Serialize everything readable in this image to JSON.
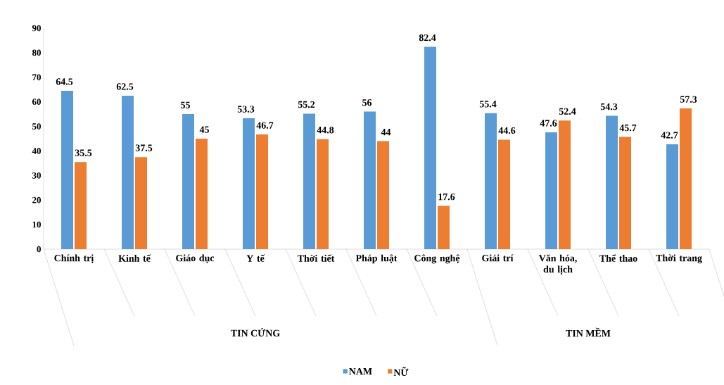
{
  "chart_data": {
    "type": "bar",
    "categories": [
      "Chính trị",
      "Kinh tế",
      "Giáo dục",
      "Y tế",
      "Thời tiết",
      "Pháp luật",
      "Công nghệ",
      "Giải trí",
      "Văn hóa, du lịch",
      "Thể thao",
      "Thời trang"
    ],
    "series": [
      {
        "name": "NAM",
        "color": "#5b9bd5",
        "values": [
          64.5,
          62.5,
          55,
          53.3,
          55.2,
          56,
          82.4,
          55.4,
          47.6,
          54.3,
          42.7
        ]
      },
      {
        "name": "NỮ",
        "color": "#ed7d31",
        "values": [
          35.5,
          37.5,
          45,
          46.7,
          44.8,
          44,
          17.6,
          44.6,
          52.4,
          45.7,
          57.3
        ]
      }
    ],
    "ylim": [
      0,
      90
    ],
    "yticks": [
      0,
      10,
      20,
      30,
      40,
      50,
      60,
      70,
      80,
      90
    ],
    "data_labels": true,
    "grid": false,
    "legend": "bottom",
    "annotations": [
      "TIN CỨNG",
      "TIN MỀM"
    ]
  }
}
